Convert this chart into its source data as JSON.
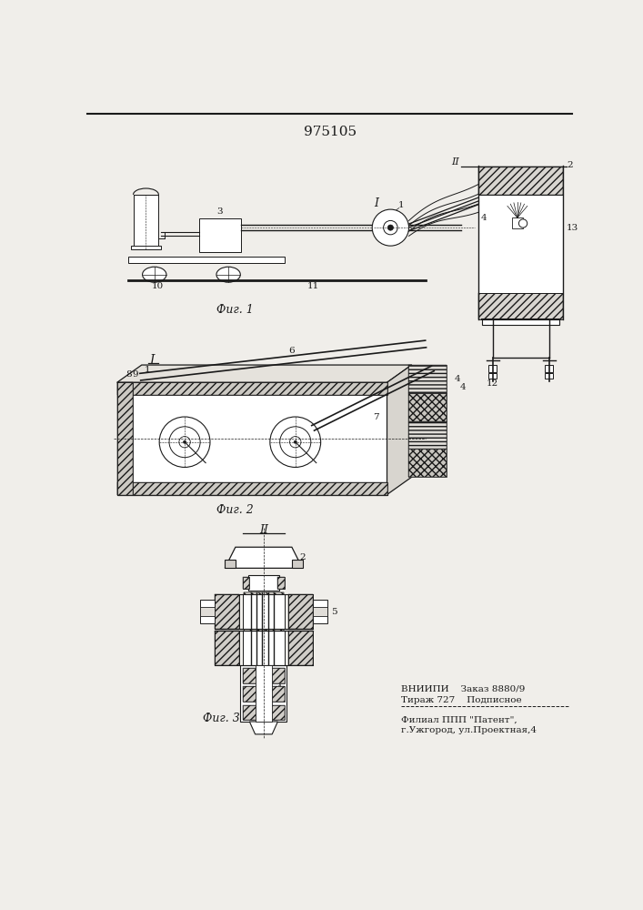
{
  "title": "975105",
  "bg_color": "#f0eeea",
  "line_color": "#1a1a1a",
  "fig1_label": "Фиг. 1",
  "fig2_label": "Фиг. 2",
  "fig3_label": "Фиг. 3",
  "footer_line1": "ВНИИПИ    Заказ 8880/9",
  "footer_line2": "Тираж 727    Подписное",
  "footer_line3": "Филиал ППП \"Патент\",",
  "footer_line4": "г.Ужгород, ул.Проектная,4",
  "label_fontsize": 7.5,
  "fig_label_fontsize": 9
}
